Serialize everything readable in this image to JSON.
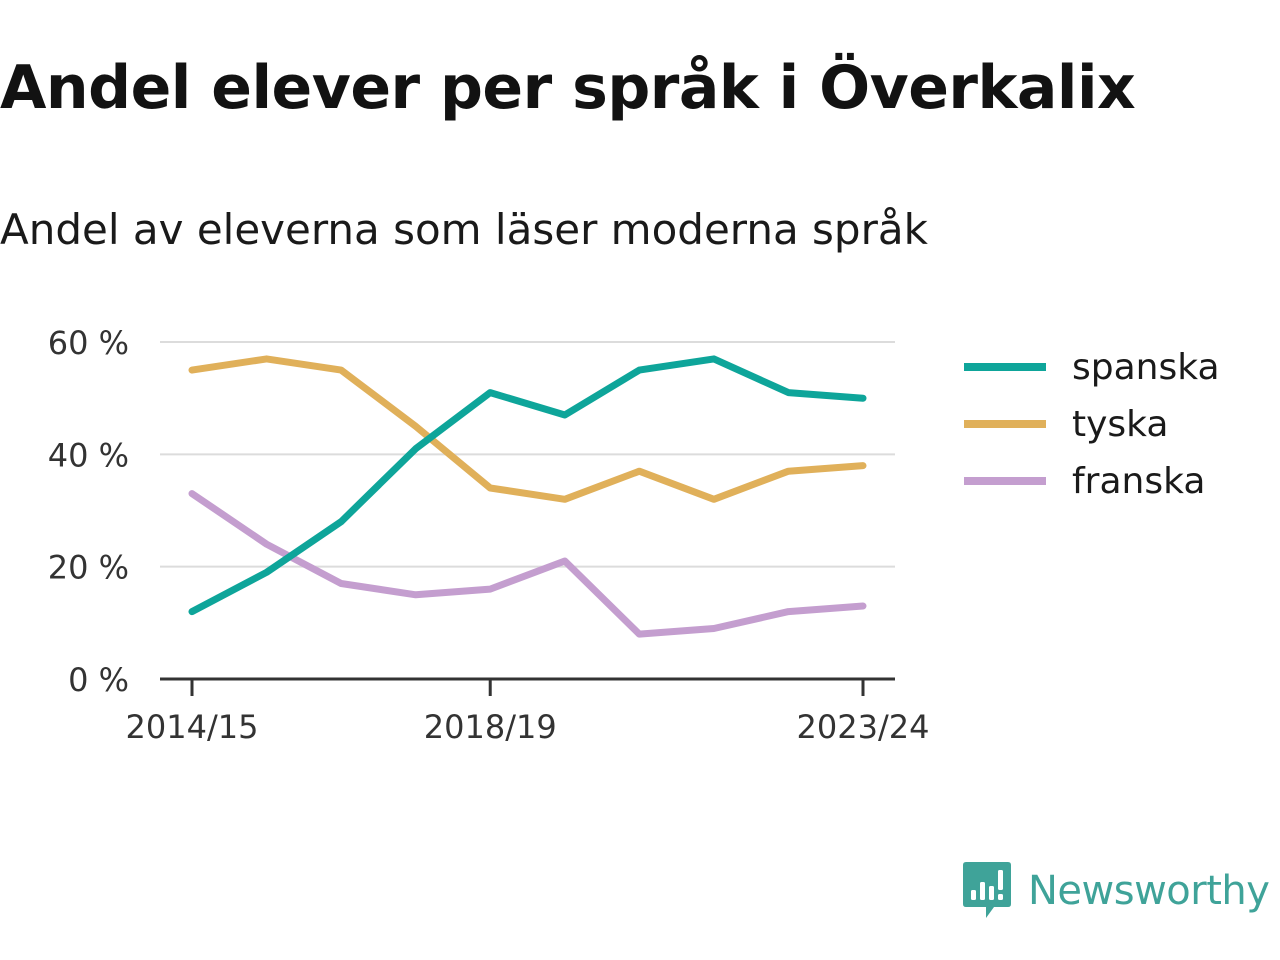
{
  "title": "Andel elever per språk i Överkalix",
  "subtitle": "Andel av eleverna som läser moderna språk",
  "brand": {
    "name": "Newsworthy",
    "color": "#3fa399",
    "icon": "newsworthy-logo-icon"
  },
  "chart_data": {
    "type": "line",
    "title": "",
    "xlabel": "",
    "ylabel": "",
    "x": [
      "2014/15",
      "2015/16",
      "2016/17",
      "2017/18",
      "2018/19",
      "2019/20",
      "2020/21",
      "2021/22",
      "2022/23",
      "2023/24"
    ],
    "x_tick_labels": [
      "2014/15",
      "2018/19",
      "2023/24"
    ],
    "y_ticks": [
      0,
      20,
      40,
      60
    ],
    "y_tick_labels": [
      "0 %",
      "20 %",
      "40 %",
      "60 %"
    ],
    "ylim": [
      0,
      60
    ],
    "grid": true,
    "legend": "right",
    "series": [
      {
        "name": "spanska",
        "color": "#0ea59a",
        "values": [
          12,
          19,
          28,
          41,
          51,
          47,
          55,
          57,
          51,
          50
        ]
      },
      {
        "name": "tyska",
        "color": "#e0b05a",
        "values": [
          55,
          57,
          55,
          45,
          34,
          32,
          37,
          32,
          37,
          38
        ]
      },
      {
        "name": "franska",
        "color": "#c49ecf",
        "values": [
          33,
          24,
          17,
          15,
          16,
          21,
          8,
          9,
          12,
          13
        ]
      }
    ]
  }
}
